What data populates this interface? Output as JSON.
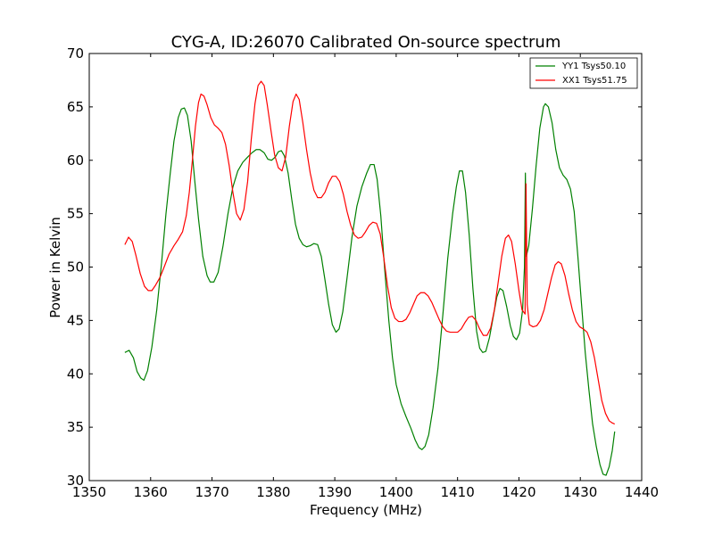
{
  "chart_data": {
    "type": "line",
    "title": "CYG-A, ID:26070 Calibrated On-source spectrum",
    "xlabel": "Frequency (MHz)",
    "ylabel": "Power in Kelvin",
    "xlim": [
      1350,
      1440
    ],
    "ylim": [
      30,
      70
    ],
    "xticks": [
      1350,
      1360,
      1370,
      1380,
      1390,
      1400,
      1410,
      1420,
      1430,
      1440
    ],
    "yticks": [
      30,
      35,
      40,
      45,
      50,
      55,
      60,
      65,
      70
    ],
    "grid": false,
    "legend_position": "top-right",
    "series": [
      {
        "name": "YY1 Tsys50.10",
        "color": "#008000",
        "points": [
          [
            1355.8,
            42.0
          ],
          [
            1356.5,
            42.2
          ],
          [
            1357.2,
            41.5
          ],
          [
            1357.8,
            40.2
          ],
          [
            1358.4,
            39.6
          ],
          [
            1358.9,
            39.4
          ],
          [
            1359.5,
            40.3
          ],
          [
            1360.2,
            42.5
          ],
          [
            1361.0,
            46.0
          ],
          [
            1361.8,
            50.5
          ],
          [
            1362.5,
            55.0
          ],
          [
            1363.2,
            58.8
          ],
          [
            1363.8,
            61.8
          ],
          [
            1364.5,
            64.0
          ],
          [
            1365.0,
            64.8
          ],
          [
            1365.5,
            64.9
          ],
          [
            1366.0,
            64.2
          ],
          [
            1366.6,
            61.8
          ],
          [
            1367.2,
            58.0
          ],
          [
            1367.8,
            54.5
          ],
          [
            1368.5,
            51.0
          ],
          [
            1369.2,
            49.2
          ],
          [
            1369.7,
            48.6
          ],
          [
            1370.3,
            48.6
          ],
          [
            1371.0,
            49.5
          ],
          [
            1371.8,
            52.0
          ],
          [
            1372.6,
            55.0
          ],
          [
            1373.4,
            57.5
          ],
          [
            1374.2,
            59.0
          ],
          [
            1375.0,
            59.8
          ],
          [
            1375.8,
            60.3
          ],
          [
            1376.5,
            60.7
          ],
          [
            1377.2,
            61.0
          ],
          [
            1377.8,
            61.0
          ],
          [
            1378.5,
            60.7
          ],
          [
            1379.1,
            60.1
          ],
          [
            1379.7,
            60.0
          ],
          [
            1380.3,
            60.3
          ],
          [
            1380.8,
            60.8
          ],
          [
            1381.3,
            60.9
          ],
          [
            1381.8,
            60.4
          ],
          [
            1382.4,
            58.8
          ],
          [
            1383.0,
            56.3
          ],
          [
            1383.6,
            54.0
          ],
          [
            1384.2,
            52.7
          ],
          [
            1384.8,
            52.1
          ],
          [
            1385.4,
            51.9
          ],
          [
            1386.0,
            52.0
          ],
          [
            1386.6,
            52.2
          ],
          [
            1387.2,
            52.1
          ],
          [
            1387.8,
            51.0
          ],
          [
            1388.4,
            48.8
          ],
          [
            1389.0,
            46.5
          ],
          [
            1389.6,
            44.6
          ],
          [
            1390.2,
            43.9
          ],
          [
            1390.7,
            44.2
          ],
          [
            1391.3,
            45.8
          ],
          [
            1392.0,
            49.0
          ],
          [
            1392.8,
            52.8
          ],
          [
            1393.6,
            55.7
          ],
          [
            1394.4,
            57.5
          ],
          [
            1395.2,
            58.8
          ],
          [
            1395.8,
            59.6
          ],
          [
            1396.4,
            59.6
          ],
          [
            1396.9,
            58.2
          ],
          [
            1397.5,
            54.8
          ],
          [
            1398.1,
            50.0
          ],
          [
            1398.8,
            45.0
          ],
          [
            1399.4,
            41.5
          ],
          [
            1400.0,
            39.0
          ],
          [
            1400.8,
            37.2
          ],
          [
            1401.6,
            36.0
          ],
          [
            1402.4,
            34.9
          ],
          [
            1403.1,
            33.8
          ],
          [
            1403.7,
            33.1
          ],
          [
            1404.2,
            32.9
          ],
          [
            1404.7,
            33.2
          ],
          [
            1405.3,
            34.3
          ],
          [
            1406.0,
            36.8
          ],
          [
            1406.8,
            40.5
          ],
          [
            1407.6,
            45.5
          ],
          [
            1408.4,
            50.8
          ],
          [
            1409.2,
            55.0
          ],
          [
            1409.8,
            57.5
          ],
          [
            1410.3,
            59.0
          ],
          [
            1410.8,
            59.0
          ],
          [
            1411.3,
            57.0
          ],
          [
            1411.9,
            53.0
          ],
          [
            1412.5,
            48.0
          ],
          [
            1413.1,
            44.0
          ],
          [
            1413.6,
            42.4
          ],
          [
            1414.1,
            42.0
          ],
          [
            1414.6,
            42.1
          ],
          [
            1415.2,
            43.4
          ],
          [
            1415.8,
            45.3
          ],
          [
            1416.4,
            47.2
          ],
          [
            1416.9,
            48.0
          ],
          [
            1417.4,
            47.8
          ],
          [
            1418.0,
            46.3
          ],
          [
            1418.6,
            44.5
          ],
          [
            1419.1,
            43.5
          ],
          [
            1419.6,
            43.2
          ],
          [
            1420.1,
            43.8
          ],
          [
            1420.6,
            46.0
          ],
          [
            1420.9,
            50.0
          ],
          [
            1421.05,
            58.8
          ],
          [
            1421.2,
            51.0
          ],
          [
            1421.6,
            52.0
          ],
          [
            1422.2,
            55.5
          ],
          [
            1422.8,
            59.5
          ],
          [
            1423.4,
            63.0
          ],
          [
            1424.0,
            65.0
          ],
          [
            1424.3,
            65.3
          ],
          [
            1424.8,
            65.0
          ],
          [
            1425.4,
            63.5
          ],
          [
            1426.0,
            61.0
          ],
          [
            1426.6,
            59.3
          ],
          [
            1427.2,
            58.6
          ],
          [
            1427.8,
            58.2
          ],
          [
            1428.4,
            57.3
          ],
          [
            1429.0,
            55.2
          ],
          [
            1429.6,
            51.0
          ],
          [
            1430.2,
            46.5
          ],
          [
            1430.8,
            42.0
          ],
          [
            1431.4,
            38.5
          ],
          [
            1432.0,
            35.3
          ],
          [
            1432.6,
            33.2
          ],
          [
            1433.2,
            31.5
          ],
          [
            1433.7,
            30.6
          ],
          [
            1434.2,
            30.5
          ],
          [
            1434.7,
            31.3
          ],
          [
            1435.2,
            32.8
          ],
          [
            1435.6,
            34.6
          ]
        ]
      },
      {
        "name": "XX1 Tsys51.75",
        "color": "#ff0000",
        "points": [
          [
            1355.8,
            52.1
          ],
          [
            1356.4,
            52.8
          ],
          [
            1357.0,
            52.4
          ],
          [
            1357.6,
            51.1
          ],
          [
            1358.3,
            49.4
          ],
          [
            1359.0,
            48.2
          ],
          [
            1359.6,
            47.8
          ],
          [
            1360.2,
            47.8
          ],
          [
            1360.8,
            48.3
          ],
          [
            1361.5,
            49.0
          ],
          [
            1362.2,
            50.0
          ],
          [
            1363.0,
            51.2
          ],
          [
            1363.8,
            52.0
          ],
          [
            1364.5,
            52.6
          ],
          [
            1365.2,
            53.3
          ],
          [
            1365.8,
            54.8
          ],
          [
            1366.3,
            57.0
          ],
          [
            1366.8,
            60.0
          ],
          [
            1367.3,
            63.2
          ],
          [
            1367.8,
            65.4
          ],
          [
            1368.2,
            66.2
          ],
          [
            1368.7,
            66.0
          ],
          [
            1369.2,
            65.2
          ],
          [
            1369.8,
            64.0
          ],
          [
            1370.4,
            63.3
          ],
          [
            1371.0,
            63.0
          ],
          [
            1371.6,
            62.6
          ],
          [
            1372.2,
            61.5
          ],
          [
            1372.8,
            59.5
          ],
          [
            1373.4,
            57.0
          ],
          [
            1374.0,
            55.0
          ],
          [
            1374.6,
            54.4
          ],
          [
            1375.2,
            55.4
          ],
          [
            1375.8,
            58.0
          ],
          [
            1376.4,
            62.0
          ],
          [
            1377.0,
            65.3
          ],
          [
            1377.5,
            67.0
          ],
          [
            1378.0,
            67.4
          ],
          [
            1378.5,
            67.0
          ],
          [
            1379.0,
            65.2
          ],
          [
            1379.6,
            62.8
          ],
          [
            1380.2,
            60.5
          ],
          [
            1380.8,
            59.3
          ],
          [
            1381.4,
            59.0
          ],
          [
            1382.0,
            60.3
          ],
          [
            1382.6,
            63.2
          ],
          [
            1383.2,
            65.5
          ],
          [
            1383.7,
            66.2
          ],
          [
            1384.2,
            65.7
          ],
          [
            1384.8,
            63.5
          ],
          [
            1385.4,
            61.0
          ],
          [
            1386.0,
            58.8
          ],
          [
            1386.6,
            57.2
          ],
          [
            1387.2,
            56.5
          ],
          [
            1387.8,
            56.5
          ],
          [
            1388.4,
            57.0
          ],
          [
            1389.0,
            57.9
          ],
          [
            1389.6,
            58.5
          ],
          [
            1390.2,
            58.5
          ],
          [
            1390.8,
            58.0
          ],
          [
            1391.4,
            56.8
          ],
          [
            1392.0,
            55.2
          ],
          [
            1392.6,
            53.9
          ],
          [
            1393.2,
            53.0
          ],
          [
            1393.8,
            52.7
          ],
          [
            1394.4,
            52.8
          ],
          [
            1395.0,
            53.3
          ],
          [
            1395.6,
            53.9
          ],
          [
            1396.2,
            54.2
          ],
          [
            1396.8,
            54.1
          ],
          [
            1397.4,
            53.1
          ],
          [
            1398.0,
            50.8
          ],
          [
            1398.6,
            48.2
          ],
          [
            1399.2,
            46.2
          ],
          [
            1399.8,
            45.2
          ],
          [
            1400.4,
            44.9
          ],
          [
            1401.0,
            44.9
          ],
          [
            1401.6,
            45.1
          ],
          [
            1402.2,
            45.7
          ],
          [
            1402.8,
            46.5
          ],
          [
            1403.4,
            47.3
          ],
          [
            1404.0,
            47.6
          ],
          [
            1404.6,
            47.6
          ],
          [
            1405.2,
            47.3
          ],
          [
            1405.8,
            46.7
          ],
          [
            1406.4,
            45.9
          ],
          [
            1407.0,
            45.1
          ],
          [
            1407.6,
            44.4
          ],
          [
            1408.2,
            44.0
          ],
          [
            1408.8,
            43.9
          ],
          [
            1409.4,
            43.9
          ],
          [
            1410.0,
            43.9
          ],
          [
            1410.6,
            44.2
          ],
          [
            1411.2,
            44.8
          ],
          [
            1411.8,
            45.3
          ],
          [
            1412.4,
            45.4
          ],
          [
            1413.0,
            45.0
          ],
          [
            1413.6,
            44.2
          ],
          [
            1414.2,
            43.6
          ],
          [
            1414.8,
            43.6
          ],
          [
            1415.4,
            44.3
          ],
          [
            1416.0,
            46.0
          ],
          [
            1416.6,
            48.5
          ],
          [
            1417.2,
            51.0
          ],
          [
            1417.8,
            52.7
          ],
          [
            1418.3,
            53.0
          ],
          [
            1418.8,
            52.4
          ],
          [
            1419.4,
            50.3
          ],
          [
            1420.0,
            47.8
          ],
          [
            1420.5,
            46.0
          ],
          [
            1421.0,
            45.6
          ],
          [
            1421.15,
            57.8
          ],
          [
            1421.35,
            46.5
          ],
          [
            1421.7,
            44.6
          ],
          [
            1422.3,
            44.4
          ],
          [
            1422.9,
            44.5
          ],
          [
            1423.5,
            45.0
          ],
          [
            1424.1,
            46.0
          ],
          [
            1424.7,
            47.5
          ],
          [
            1425.3,
            49.0
          ],
          [
            1425.9,
            50.2
          ],
          [
            1426.4,
            50.5
          ],
          [
            1426.9,
            50.3
          ],
          [
            1427.5,
            49.2
          ],
          [
            1428.1,
            47.5
          ],
          [
            1428.7,
            46.0
          ],
          [
            1429.3,
            44.9
          ],
          [
            1429.9,
            44.4
          ],
          [
            1430.5,
            44.2
          ],
          [
            1431.1,
            43.9
          ],
          [
            1431.7,
            43.0
          ],
          [
            1432.3,
            41.5
          ],
          [
            1432.9,
            39.5
          ],
          [
            1433.5,
            37.5
          ],
          [
            1434.1,
            36.3
          ],
          [
            1434.7,
            35.6
          ],
          [
            1435.2,
            35.4
          ],
          [
            1435.6,
            35.3
          ]
        ]
      }
    ]
  }
}
